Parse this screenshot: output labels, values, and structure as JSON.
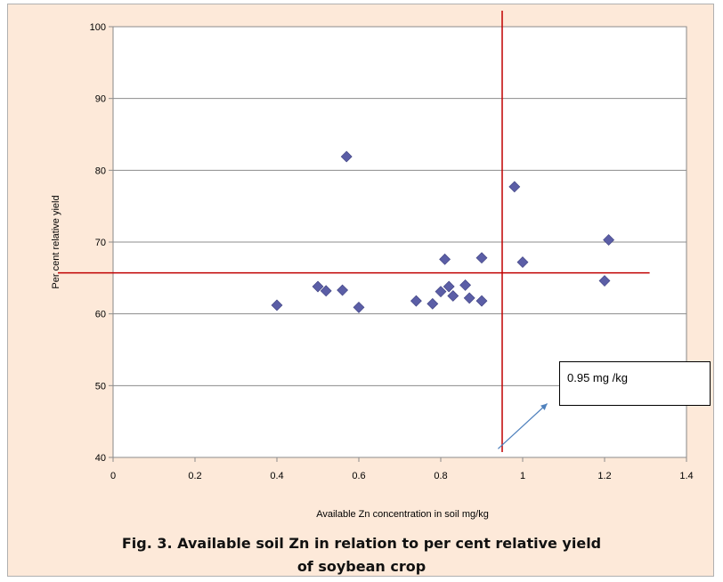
{
  "chart_data": {
    "type": "scatter",
    "title": "",
    "xlabel": "Available Zn concentration in soil mg/kg",
    "ylabel": "Per cent relative yield",
    "xlim": [
      0,
      1.4
    ],
    "ylim": [
      40,
      100
    ],
    "xticks": [
      0,
      0.2,
      0.4,
      0.6,
      0.8,
      1,
      1.2,
      1.4
    ],
    "xtick_labels": [
      "0",
      "0.2",
      "0.4",
      "0.6",
      "0.8",
      "1",
      "1.2",
      "1.4"
    ],
    "yticks": [
      40,
      50,
      60,
      70,
      80,
      90,
      100
    ],
    "ytick_labels": [
      "40",
      "50",
      "60",
      "70",
      "80",
      "90",
      "100"
    ],
    "grid": "horizontal",
    "marker": "diamond",
    "marker_color": "#5b5ea6",
    "points": [
      {
        "x": 0.4,
        "y": 61.2
      },
      {
        "x": 0.5,
        "y": 63.8
      },
      {
        "x": 0.52,
        "y": 63.2
      },
      {
        "x": 0.56,
        "y": 63.3
      },
      {
        "x": 0.57,
        "y": 81.9
      },
      {
        "x": 0.6,
        "y": 60.9
      },
      {
        "x": 0.74,
        "y": 61.8
      },
      {
        "x": 0.78,
        "y": 61.4
      },
      {
        "x": 0.8,
        "y": 63.1
      },
      {
        "x": 0.81,
        "y": 67.6
      },
      {
        "x": 0.82,
        "y": 63.8
      },
      {
        "x": 0.83,
        "y": 62.5
      },
      {
        "x": 0.86,
        "y": 64.0
      },
      {
        "x": 0.87,
        "y": 62.2
      },
      {
        "x": 0.9,
        "y": 67.8
      },
      {
        "x": 0.9,
        "y": 61.8
      },
      {
        "x": 0.98,
        "y": 77.7
      },
      {
        "x": 1.0,
        "y": 67.2
      },
      {
        "x": 1.2,
        "y": 64.6
      },
      {
        "x": 1.21,
        "y": 70.3
      }
    ],
    "reference_lines": {
      "vertical_x": 0.95,
      "horizontal_y": 65.7,
      "horizontal_x_end": 1.31,
      "color": "#c00000"
    },
    "annotation": {
      "text": "0.95 mg /kg",
      "arrow_from": [
        0.94,
        41.2
      ],
      "arrow_to": [
        1.06,
        47.5
      ],
      "arrow_color": "#4f81bd"
    }
  },
  "caption": {
    "line1": "Fig. 3. Available soil Zn in relation to  per cent relative yield",
    "line2": "of soybean crop"
  }
}
